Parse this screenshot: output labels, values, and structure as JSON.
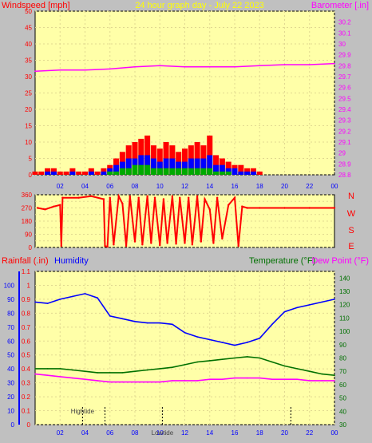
{
  "header": {
    "left_label": "Windspeed [mph]",
    "title": "24 hour graph day - July 22 2023",
    "right_label": "Barometer [.in]"
  },
  "labels": {
    "rainfall": "Rainfall (.in)",
    "humidity": "Humidity",
    "temperature": "Temperature (°F)",
    "dewpoint": "Dew Point (°F)"
  },
  "compass": [
    "N",
    "W",
    "S",
    "E",
    "N"
  ],
  "tides": [
    {
      "label": "Hightide",
      "hour": 3.8
    },
    {
      "label": "Lowtide",
      "hour": 10.2
    }
  ],
  "colors": {
    "background": "#c0c0c0",
    "plot_bg": "#ffffa8",
    "wind_gust": "#ff0000",
    "wind_avg": "#0000ff",
    "wind_low": "#00aa00",
    "barometer": "#ff00ff",
    "direction": "#ff0000",
    "humidity": "#0000ff",
    "temperature": "#007000",
    "dewpoint": "#ff00ff"
  },
  "chart_data": [
    {
      "type": "line",
      "name": "wind-barometer",
      "title": "24 hour graph day - July 22 2023",
      "xlabel": "",
      "ylabel": "Windspeed [mph]",
      "y2label": "Barometer [.in]",
      "x_ticks": [
        "02",
        "04",
        "06",
        "08",
        "10",
        "12",
        "14",
        "16",
        "18",
        "20",
        "22",
        "00"
      ],
      "ylim": [
        0,
        50
      ],
      "y_ticks": [
        0,
        5,
        10,
        15,
        20,
        25,
        30,
        35,
        40,
        45,
        50
      ],
      "y2lim": [
        28.8,
        30.3
      ],
      "y2_ticks": [
        "28.8",
        "28.9",
        "29",
        "29.1",
        "29.2",
        "29.3",
        "29.4",
        "29.5",
        "29.6",
        "29.7",
        "29.8",
        "29.9",
        "30",
        "30.1",
        "30.2"
      ],
      "wind_hours": [
        0.0,
        0.5,
        1.0,
        1.5,
        2.0,
        2.5,
        3.0,
        3.5,
        4.0,
        4.5,
        5.0,
        5.5,
        6.0,
        6.5,
        7.0,
        7.5,
        8.0,
        8.5,
        9.0,
        9.5,
        10.0,
        10.5,
        11.0,
        11.5,
        12.0,
        12.5,
        13.0,
        13.5,
        14.0,
        14.5,
        15.0,
        15.5,
        16.0,
        16.5,
        17.0,
        17.5,
        18.0
      ],
      "wind_gust": [
        1,
        1,
        2,
        2,
        1,
        1,
        2,
        1,
        1,
        2,
        1,
        2,
        3,
        5,
        7,
        9,
        10,
        11,
        12,
        9,
        8,
        10,
        9,
        7,
        8,
        9,
        10,
        9,
        12,
        6,
        5,
        4,
        3,
        3,
        2,
        2,
        1
      ],
      "wind_avg": [
        0,
        0,
        1,
        1,
        0,
        0,
        1,
        0,
        0,
        1,
        0,
        1,
        2,
        3,
        4,
        5,
        5,
        6,
        6,
        5,
        4,
        5,
        5,
        4,
        4,
        5,
        5,
        5,
        6,
        3,
        3,
        2,
        2,
        1,
        1,
        1,
        0
      ],
      "wind_low": [
        0,
        0,
        0,
        0,
        0,
        0,
        0,
        0,
        0,
        0,
        0,
        0,
        1,
        1,
        2,
        2,
        3,
        3,
        3,
        2,
        2,
        2,
        2,
        2,
        2,
        2,
        2,
        2,
        2,
        1,
        1,
        1,
        0,
        0,
        0,
        0,
        0
      ],
      "baro_hours": [
        0,
        2,
        4,
        6,
        8,
        10,
        12,
        14,
        16,
        18,
        20,
        22,
        24
      ],
      "barometer": [
        29.75,
        29.76,
        29.76,
        29.77,
        29.79,
        29.8,
        29.79,
        29.79,
        29.79,
        29.8,
        29.81,
        29.81,
        29.82
      ]
    },
    {
      "type": "scatter",
      "name": "wind-direction",
      "ylabel": "Wind direction (degrees)",
      "ylim": [
        0,
        360
      ],
      "y_ticks": [
        0,
        45,
        90,
        135,
        180,
        225,
        270,
        315,
        360
      ],
      "hours": [
        0.2,
        0.8,
        1.5,
        2.0,
        2.1,
        2.2,
        3.5,
        4.5,
        5.5,
        5.6,
        5.8,
        6.0,
        6.3,
        6.7,
        7.0,
        7.3,
        7.6,
        8.0,
        8.3,
        8.6,
        9.0,
        9.3,
        9.6,
        10.0,
        10.3,
        10.6,
        11.0,
        11.3,
        11.6,
        12.0,
        12.3,
        12.6,
        13.0,
        13.3,
        13.6,
        14.0,
        14.3,
        14.6,
        15.0,
        15.5,
        16.0,
        16.3,
        16.6,
        17.0,
        18.0,
        20.0,
        22.0,
        24.0
      ],
      "values": [
        270,
        260,
        280,
        290,
        10,
        340,
        340,
        350,
        330,
        10,
        5,
        340,
        20,
        350,
        300,
        10,
        350,
        40,
        340,
        20,
        350,
        30,
        340,
        15,
        330,
        30,
        350,
        25,
        340,
        30,
        340,
        20,
        350,
        40,
        330,
        260,
        30,
        340,
        60,
        290,
        340,
        10,
        280,
        270,
        270,
        270,
        270,
        270
      ]
    },
    {
      "type": "line",
      "name": "humidity-temperature",
      "ylabel": "Rainfall (.in)",
      "ylim": [
        0,
        1.1
      ],
      "y_ticks": [
        "0",
        "0.1",
        "0.2",
        "0.3",
        "0.4",
        "0.5",
        "0.6",
        "0.7",
        "0.8",
        "0.9",
        "1",
        "1.1"
      ],
      "humidity_axis": [
        0,
        10,
        20,
        30,
        40,
        50,
        60,
        70,
        80,
        90,
        100
      ],
      "y2label": "Temperature (°F)",
      "y2lim": [
        30,
        145
      ],
      "y2_ticks": [
        30,
        40,
        50,
        60,
        70,
        80,
        90,
        100,
        110,
        120,
        130,
        140
      ],
      "hours": [
        0,
        1,
        2,
        3,
        4,
        5,
        6,
        7,
        8,
        9,
        10,
        11,
        12,
        13,
        14,
        15,
        16,
        17,
        18,
        19,
        20,
        21,
        22,
        23,
        24
      ],
      "rainfall": [
        0,
        0,
        0,
        0,
        0,
        0,
        0,
        0,
        0,
        0,
        0,
        0,
        0,
        0,
        0,
        0,
        0,
        0,
        0,
        0,
        0,
        0,
        0,
        0,
        0
      ],
      "humidity": [
        88,
        87,
        90,
        92,
        94,
        91,
        78,
        76,
        74,
        73,
        73,
        72,
        66,
        63,
        61,
        59,
        57,
        59,
        62,
        72,
        81,
        84,
        86,
        88,
        90
      ],
      "temperature": [
        72,
        72,
        72,
        71,
        70,
        69,
        69,
        69,
        70,
        71,
        72,
        73,
        75,
        77,
        78,
        79,
        80,
        81,
        80,
        77,
        74,
        72,
        70,
        68,
        67
      ],
      "dewpoint": [
        68,
        67,
        66,
        65,
        64,
        63,
        62,
        62,
        62,
        62,
        62,
        63,
        63,
        63,
        64,
        64,
        65,
        65,
        65,
        64,
        64,
        64,
        63,
        63,
        63
      ]
    }
  ]
}
